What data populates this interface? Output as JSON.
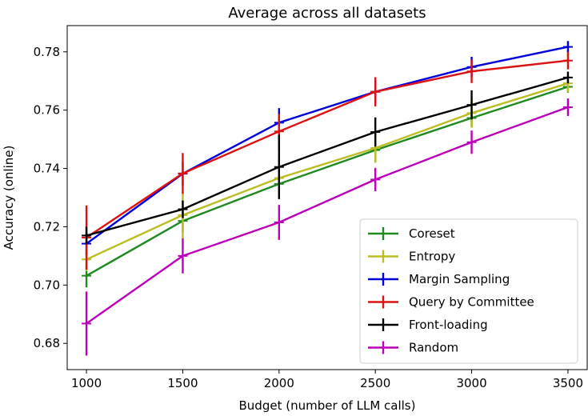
{
  "chart_data": {
    "type": "line",
    "title": "Average across all datasets",
    "xlabel": "Budget (number of LLM calls)",
    "ylabel": "Accuracy (online)",
    "x": [
      1000,
      1500,
      2000,
      2500,
      3000,
      3500
    ],
    "xlim": [
      900,
      3600
    ],
    "ylim": [
      0.671,
      0.789
    ],
    "xticks": [
      1000,
      1500,
      2000,
      2500,
      3000,
      3500
    ],
    "yticks": [
      0.68,
      0.7,
      0.72,
      0.74,
      0.76,
      0.78
    ],
    "ytick_labels": [
      "0.68",
      "0.70",
      "0.72",
      "0.74",
      "0.76",
      "0.78"
    ],
    "grid": false,
    "legend_position": "lower-right",
    "series": [
      {
        "name": "Coreset",
        "color": "#1f8a1f",
        "values": [
          0.7032,
          0.722,
          0.7347,
          0.7463,
          0.7573,
          0.768
        ],
        "errors": [
          0.004,
          0.004,
          0.005,
          0.004,
          0.003,
          0.002
        ]
      },
      {
        "name": "Entropy",
        "color": "#bcbd22",
        "values": [
          0.7088,
          0.724,
          0.7367,
          0.747,
          0.759,
          0.7692
        ],
        "errors": [
          0.004,
          0.008,
          0.007,
          0.005,
          0.005,
          0.003
        ]
      },
      {
        "name": "Margin Sampling",
        "color": "#0000dd",
        "values": [
          0.7142,
          0.7382,
          0.7557,
          0.7663,
          0.7748,
          0.7817
        ],
        "errors": [
          0.004,
          0.004,
          0.005,
          0.004,
          0.0035,
          0.002
        ]
      },
      {
        "name": "Query by Committee",
        "color": "#dd1111",
        "values": [
          0.7163,
          0.7383,
          0.7527,
          0.7663,
          0.7733,
          0.777
        ],
        "errors": [
          0.011,
          0.007,
          0.006,
          0.005,
          0.004,
          0.003
        ]
      },
      {
        "name": "Front-loading",
        "color": "#000000",
        "values": [
          0.717,
          0.726,
          0.7405,
          0.7525,
          0.7618,
          0.7712
        ],
        "errors": [
          0.003,
          0.003,
          0.011,
          0.005,
          0.005,
          0.002
        ]
      },
      {
        "name": "Random",
        "color": "#bb00bb",
        "values": [
          0.6868,
          0.71,
          0.7215,
          0.7362,
          0.749,
          0.761
        ],
        "errors": [
          0.011,
          0.006,
          0.006,
          0.004,
          0.004,
          0.003
        ]
      }
    ]
  }
}
